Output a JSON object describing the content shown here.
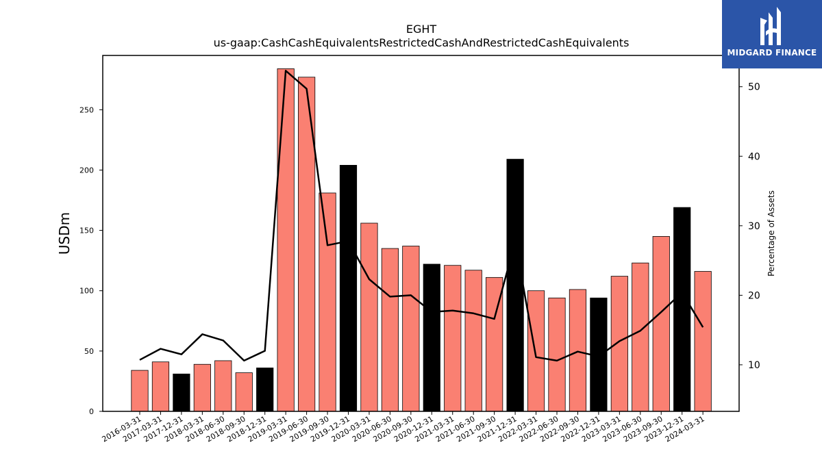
{
  "chart_data": {
    "type": "bar",
    "title": "EGHT",
    "subtitle": "us-gaap:CashCashEquivalentsRestrictedCashAndRestrictedCashEquivalents",
    "ylabel": "USDm",
    "ylabel_right": "Percentage of Assets",
    "ylim": [
      0,
      295
    ],
    "ylim_right": [
      3.3,
      54.5
    ],
    "yticks": [
      0,
      50,
      100,
      150,
      200,
      250
    ],
    "yticks_right": [
      10,
      20,
      30,
      40,
      50
    ],
    "categories": [
      "2016-03-31",
      "2017-03-31",
      "2017-12-31",
      "2018-03-31",
      "2018-06-30",
      "2018-09-30",
      "2018-12-31",
      "2019-03-31",
      "2019-06-30",
      "2019-09-30",
      "2019-12-31",
      "2020-03-31",
      "2020-06-30",
      "2020-09-30",
      "2020-12-31",
      "2021-03-31",
      "2021-06-30",
      "2021-09-30",
      "2021-12-31",
      "2022-03-31",
      "2022-06-30",
      "2022-09-30",
      "2022-12-31",
      "2023-03-31",
      "2023-06-30",
      "2023-09-30",
      "2023-12-31",
      "2024-03-31"
    ],
    "series": [
      {
        "type": "bar",
        "values": [
          34,
          41,
          31,
          39,
          42,
          32,
          36,
          284,
          277,
          181,
          204,
          156,
          135,
          137,
          122,
          121,
          117,
          111,
          209,
          100,
          94,
          101,
          94,
          112,
          123,
          145,
          169,
          116
        ]
      },
      {
        "type": "line",
        "axis": "right",
        "values": [
          10.7,
          12.3,
          11.5,
          14.4,
          13.5,
          10.6,
          12.0,
          52.3,
          49.7,
          27.2,
          27.8,
          22.3,
          19.8,
          20.0,
          17.6,
          17.8,
          17.4,
          16.6,
          27.7,
          11.1,
          10.6,
          11.9,
          11.2,
          13.4,
          14.9,
          17.6,
          20.4,
          15.4
        ]
      }
    ],
    "bar_colors": [
      "#fa8072",
      "#fa8072",
      "#000000",
      "#fa8072",
      "#fa8072",
      "#fa8072",
      "#000000",
      "#fa8072",
      "#fa8072",
      "#fa8072",
      "#000000",
      "#fa8072",
      "#fa8072",
      "#fa8072",
      "#000000",
      "#fa8072",
      "#fa8072",
      "#fa8072",
      "#000000",
      "#fa8072",
      "#fa8072",
      "#fa8072",
      "#000000",
      "#fa8072",
      "#fa8072",
      "#fa8072",
      "#000000",
      "#fa8072"
    ],
    "line_color": "#000000",
    "grid": false
  },
  "logo": {
    "text": "MIDGARD FINANCE",
    "color": "#2b55a8"
  }
}
